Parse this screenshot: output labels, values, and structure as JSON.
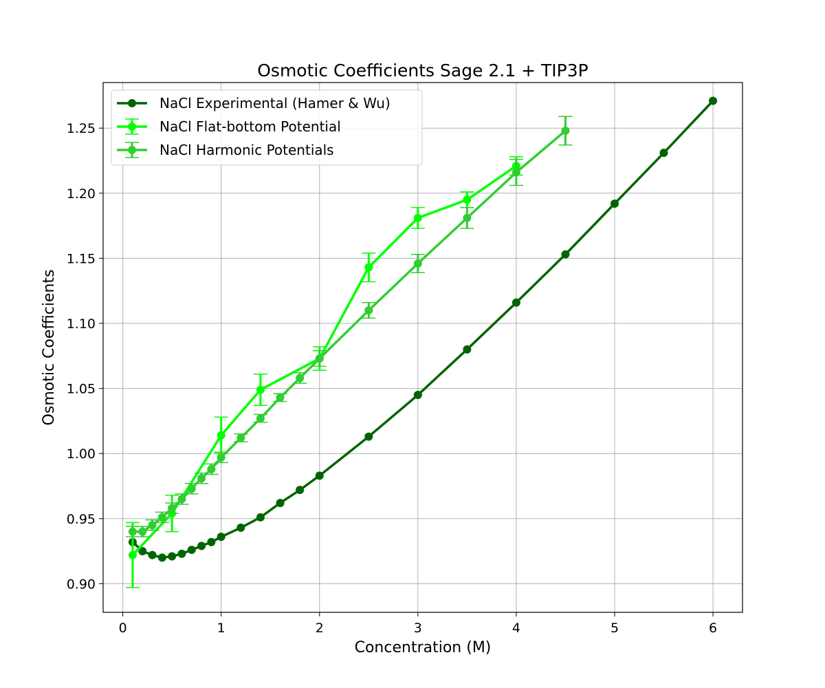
{
  "chart_data": {
    "type": "line",
    "title": "Osmotic Coefficients Sage 2.1 + TIP3P",
    "xlabel": "Concentration (M)",
    "ylabel": "Osmotic Coefficients",
    "xlim": [
      -0.2,
      6.3
    ],
    "ylim": [
      0.878,
      1.285
    ],
    "xticks": [
      "0",
      "1",
      "2",
      "3",
      "4",
      "5",
      "6"
    ],
    "yticks": [
      "0.90",
      "0.95",
      "1.00",
      "1.05",
      "1.10",
      "1.15",
      "1.20",
      "1.25"
    ],
    "grid": true,
    "legend_position": "top-left",
    "series": [
      {
        "name": "NaCl Experimental (Hamer & Wu)",
        "color": "#006400",
        "x": [
          0.1,
          0.2,
          0.3,
          0.4,
          0.5,
          0.6,
          0.7,
          0.8,
          0.9,
          1.0,
          1.2,
          1.4,
          1.6,
          1.8,
          2.0,
          2.5,
          3.0,
          3.5,
          4.0,
          4.5,
          5.0,
          5.5,
          6.0
        ],
        "y": [
          0.932,
          0.925,
          0.922,
          0.92,
          0.921,
          0.923,
          0.926,
          0.929,
          0.932,
          0.936,
          0.943,
          0.951,
          0.962,
          0.972,
          0.983,
          1.013,
          1.045,
          1.08,
          1.116,
          1.153,
          1.192,
          1.231,
          1.271
        ],
        "error": null
      },
      {
        "name": "NaCl Flat-bottom Potential",
        "color": "#00ff00",
        "x": [
          0.1,
          0.5,
          1.0,
          1.4,
          2.0,
          2.5,
          3.0,
          3.5,
          4.0
        ],
        "y": [
          0.922,
          0.954,
          1.014,
          1.049,
          1.073,
          1.143,
          1.181,
          1.195,
          1.221
        ],
        "error": [
          0.025,
          0.014,
          0.014,
          0.012,
          0.009,
          0.011,
          0.008,
          0.006,
          0.007
        ]
      },
      {
        "name": "NaCl Harmonic Potentials",
        "color": "#32cd32",
        "x": [
          0.1,
          0.2,
          0.3,
          0.4,
          0.5,
          0.6,
          0.7,
          0.8,
          0.9,
          1.0,
          1.2,
          1.4,
          1.6,
          1.8,
          2.0,
          2.5,
          3.0,
          3.5,
          4.0,
          4.5
        ],
        "y": [
          0.94,
          0.94,
          0.945,
          0.951,
          0.958,
          0.965,
          0.973,
          0.981,
          0.988,
          0.997,
          1.012,
          1.027,
          1.043,
          1.058,
          1.073,
          1.11,
          1.146,
          1.181,
          1.216,
          1.248
        ],
        "error": [
          0.004,
          0.004,
          0.004,
          0.004,
          0.004,
          0.004,
          0.004,
          0.004,
          0.004,
          0.004,
          0.003,
          0.003,
          0.003,
          0.004,
          0.006,
          0.006,
          0.007,
          0.008,
          0.01,
          0.011
        ]
      }
    ]
  }
}
